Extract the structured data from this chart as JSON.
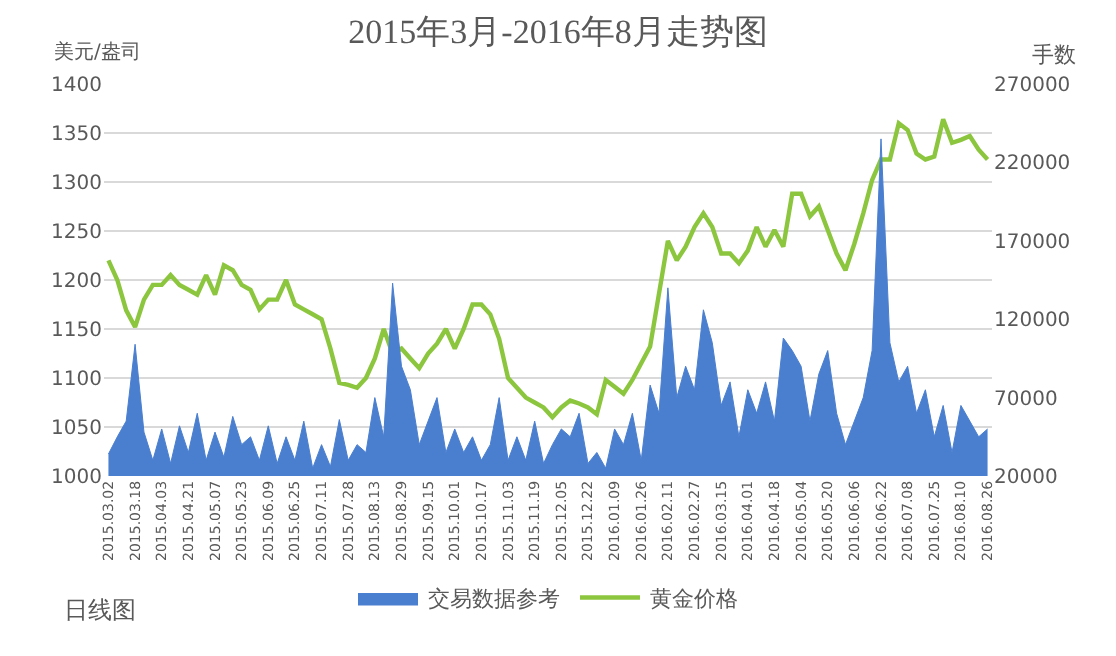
{
  "chart_data": {
    "type": "line",
    "title": "2015年3月-2016年8月走势图",
    "ylabel": "美元/盎司",
    "y2label": "手数",
    "categories": [
      "2015.03.02",
      null,
      null,
      "2015.03.18",
      null,
      null,
      "2015.04.03",
      null,
      null,
      "2015.04.21",
      null,
      null,
      "2015.05.07",
      null,
      null,
      "2015.05.23",
      null,
      null,
      "2015.06.09",
      null,
      null,
      "2015.06.25",
      null,
      null,
      "2015.07.11",
      null,
      null,
      "2015.07.28",
      null,
      null,
      "2015.08.13",
      null,
      null,
      "2015.08.29",
      null,
      null,
      "2015.09.15",
      null,
      null,
      "2015.10.01",
      null,
      null,
      "2015.10.17",
      null,
      null,
      "2015.11.03",
      null,
      null,
      "2015.11.19",
      null,
      null,
      "2015.12.05",
      null,
      null,
      "2015.12.22",
      null,
      null,
      "2016.01.09",
      null,
      null,
      "2016.01.26",
      null,
      null,
      "2016.02.11",
      null,
      null,
      "2016.02.27",
      null,
      null,
      "2016.03.15",
      null,
      null,
      "2016.04.01",
      null,
      null,
      "2016.04.18",
      null,
      null,
      "2016.05.04",
      null,
      null,
      "2016.05.20",
      null,
      null,
      "2016.06.06",
      null,
      null,
      "2016.06.22",
      null,
      null,
      "2016.07.08",
      null,
      null,
      "2016.07.25",
      null,
      null,
      "2016.08.10",
      null,
      null,
      "2016.08.26"
    ],
    "series": [
      {
        "name": "交易数据参考",
        "type": "area",
        "axis": "y2",
        "color": "#4a7fd0",
        "values": [
          34000,
          45000,
          55000,
          104000,
          48000,
          30000,
          50000,
          28000,
          52000,
          35000,
          60000,
          30000,
          48000,
          32000,
          58000,
          40000,
          45000,
          30000,
          52000,
          28000,
          45000,
          30000,
          55000,
          25000,
          40000,
          26000,
          56000,
          30000,
          40000,
          35000,
          70000,
          45000,
          143000,
          90000,
          75000,
          40000,
          55000,
          70000,
          35000,
          50000,
          35000,
          45000,
          30000,
          40000,
          70000,
          30000,
          45000,
          30000,
          55000,
          28000,
          40000,
          50000,
          45000,
          60000,
          28000,
          35000,
          25000,
          50000,
          40000,
          60000,
          30000,
          78000,
          60000,
          140000,
          70000,
          90000,
          75000,
          126000,
          105000,
          65000,
          80000,
          45000,
          75000,
          60000,
          80000,
          55000,
          108000,
          100000,
          90000,
          55000,
          85000,
          100000,
          60000,
          40000,
          55000,
          70000,
          100000,
          235000,
          105000,
          80000,
          90000,
          60000,
          75000,
          45000,
          65000,
          35000,
          65000,
          55000,
          45000,
          50000
        ]
      },
      {
        "name": "黄金价格",
        "color": "#8cc63e",
        "values": [
          1220,
          1200,
          1169,
          1152,
          1180,
          1195,
          1195,
          1205,
          1195,
          1190,
          1185,
          1205,
          1185,
          1215,
          1210,
          1195,
          1190,
          1170,
          1180,
          1180,
          1200,
          1175,
          1170,
          1165,
          1160,
          1130,
          1095,
          1093,
          1090,
          1100,
          1120,
          1150,
          1125,
          1130,
          1120,
          1110,
          1125,
          1135,
          1150,
          1130,
          1150,
          1175,
          1175,
          1165,
          1140,
          1100,
          1090,
          1080,
          1075,
          1070,
          1060,
          1070,
          1077,
          1074,
          1070,
          1063,
          1098,
          1091,
          1084,
          1098,
          1115,
          1132,
          1186,
          1240,
          1220,
          1234,
          1254,
          1268,
          1254,
          1227,
          1227,
          1217,
          1230,
          1254,
          1234,
          1251,
          1234,
          1288,
          1288,
          1265,
          1275,
          1251,
          1227,
          1210,
          1237,
          1268,
          1302,
          1323,
          1323,
          1360,
          1353,
          1329,
          1323,
          1326,
          1364,
          1340,
          1343,
          1347,
          1333,
          1323
        ]
      }
    ],
    "ylim": [
      1000,
      1400
    ],
    "yticks": [
      1000,
      1050,
      1100,
      1150,
      1200,
      1250,
      1300,
      1350,
      1400
    ],
    "y2lim": [
      20000,
      270000
    ],
    "y2ticks": [
      20000,
      70000,
      120000,
      170000,
      220000,
      270000
    ],
    "grid": "y",
    "legend": "bottom",
    "marker": "none",
    "line_style": "solid",
    "annotations": [
      "日线图"
    ]
  }
}
